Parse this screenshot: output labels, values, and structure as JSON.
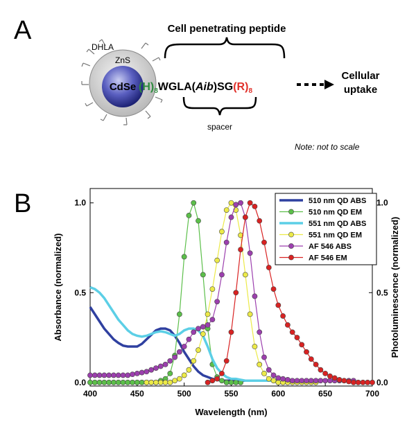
{
  "panel_a": {
    "label": "A",
    "brace_label": "Cell penetrating peptide",
    "dhla": "DHLA",
    "shell": "ZnS",
    "core": "CdSe",
    "peptide": [
      "(H)",
      "8",
      "WGLA(",
      "Aib",
      ")SG",
      "(R)",
      "8"
    ],
    "spacer": "spacer",
    "uptake": [
      "Cellular",
      "uptake"
    ],
    "note": "Note: not to scale"
  },
  "panel_b": {
    "label": "B"
  },
  "chart_data": {
    "type": "line",
    "x_label": "Wavelength (nm)",
    "y_label": "Absorbance (normalized)",
    "y2_label": "Photoluminescence (normalized)",
    "xlim": [
      400,
      700
    ],
    "xticks": [
      400,
      450,
      500,
      550,
      600,
      650,
      700
    ],
    "ylim": [
      -0.02,
      1.08
    ],
    "yticks": [
      {
        "value": 0,
        "label": "0.0"
      },
      {
        "value": 0.5,
        "label": "0.5"
      },
      {
        "value": 1,
        "label": "1.0"
      }
    ],
    "y2lim": [
      -0.02,
      1.08
    ],
    "y2ticks": [
      {
        "value": 0,
        "label": "0.0"
      },
      {
        "value": 0.5,
        "label": "0.5"
      },
      {
        "value": 1,
        "label": "1.0"
      }
    ],
    "legend": "upper right",
    "x": [
      400,
      405,
      410,
      415,
      420,
      425,
      430,
      435,
      440,
      445,
      450,
      455,
      460,
      465,
      470,
      475,
      480,
      485,
      490,
      495,
      500,
      505,
      510,
      515,
      520,
      525,
      530,
      535,
      540,
      545,
      550,
      555,
      560,
      565,
      570,
      575,
      580,
      585,
      590,
      595,
      600,
      605,
      610,
      615,
      620,
      625,
      630,
      635,
      640,
      645,
      650,
      655,
      660,
      665,
      670,
      675,
      680,
      685,
      690,
      695,
      700
    ],
    "series": [
      {
        "name": "510 nm QD ABS",
        "color": "#2f40a0",
        "marker": false,
        "axis": "y",
        "values": [
          0.42,
          0.38,
          0.34,
          0.3,
          0.27,
          0.24,
          0.22,
          0.205,
          0.2,
          0.2,
          0.2,
          0.215,
          0.24,
          0.265,
          0.29,
          0.3,
          0.3,
          0.29,
          0.26,
          0.22,
          0.17,
          0.13,
          0.09,
          0.06,
          0.04,
          0.03,
          0.02,
          0.015,
          0.01,
          0.01,
          0.01,
          0.01,
          0.01,
          0.01,
          0.01,
          0.01,
          0.01,
          0.01,
          0.01,
          0.01,
          0.01,
          null,
          null,
          null,
          null,
          null,
          null,
          null,
          null,
          null,
          null,
          null,
          null,
          null,
          null,
          null,
          null,
          null,
          null,
          null,
          null
        ]
      },
      {
        "name": "510 nm QD EM",
        "color": "#5cbf4a",
        "marker": true,
        "axis": "y2",
        "values": [
          0,
          0,
          0,
          0,
          0,
          0,
          0,
          0,
          0,
          0,
          0,
          0,
          0,
          0,
          0,
          0.01,
          0.02,
          0.05,
          0.15,
          0.38,
          0.7,
          0.93,
          1.0,
          0.9,
          0.6,
          0.3,
          0.1,
          0.03,
          0.01,
          0,
          0,
          0,
          0,
          null,
          null,
          null,
          null,
          null,
          null,
          null,
          null,
          null,
          null,
          null,
          null,
          null,
          null,
          null,
          null,
          null,
          null,
          null,
          null,
          null,
          null,
          null,
          null,
          null,
          null,
          null,
          null
        ]
      },
      {
        "name": "551 nm QD ABS",
        "color": "#5ccfe6",
        "marker": false,
        "axis": "y",
        "values": [
          0.53,
          0.52,
          0.5,
          0.47,
          0.43,
          0.39,
          0.35,
          0.32,
          0.29,
          0.27,
          0.26,
          0.255,
          0.26,
          0.27,
          0.28,
          0.285,
          0.28,
          0.27,
          0.26,
          0.27,
          0.29,
          0.3,
          0.3,
          0.29,
          0.26,
          0.2,
          0.13,
          0.08,
          0.05,
          0.03,
          0.02,
          0.02,
          0.015,
          0.01,
          0.01,
          0.01,
          0.01,
          0.01,
          0.01,
          0.01,
          0.01,
          null,
          null,
          null,
          null,
          null,
          null,
          null,
          null,
          null,
          null,
          null,
          null,
          null,
          null,
          null,
          null,
          null,
          null,
          null,
          null
        ]
      },
      {
        "name": "551 nm QD EM",
        "color": "#ecea48",
        "marker": true,
        "axis": "y2",
        "values": [
          null,
          null,
          null,
          null,
          null,
          null,
          null,
          null,
          null,
          null,
          null,
          null,
          0,
          0,
          0,
          0,
          0,
          0,
          0.01,
          0.02,
          0.04,
          0.07,
          0.12,
          0.18,
          0.27,
          0.38,
          0.52,
          0.68,
          0.84,
          0.96,
          1.0,
          0.96,
          0.82,
          0.6,
          0.38,
          0.2,
          0.1,
          0.05,
          0.02,
          0.01,
          0,
          0,
          0,
          0,
          0,
          0,
          0,
          0,
          0,
          null,
          null,
          null,
          null,
          null,
          null,
          null,
          null,
          null,
          null,
          null,
          null
        ]
      },
      {
        "name": "AF 546 ABS",
        "color": "#9c3fae",
        "marker": true,
        "axis": "y",
        "values": [
          0.04,
          0.04,
          0.04,
          0.04,
          0.04,
          0.04,
          0.04,
          0.04,
          0.04,
          0.045,
          0.05,
          0.055,
          0.06,
          0.07,
          0.08,
          0.09,
          0.1,
          0.12,
          0.14,
          0.17,
          0.2,
          0.24,
          0.28,
          0.3,
          0.31,
          0.32,
          0.35,
          0.45,
          0.6,
          0.78,
          0.92,
          0.99,
          1.0,
          0.92,
          0.72,
          0.48,
          0.28,
          0.14,
          0.07,
          0.04,
          0.025,
          0.02,
          0.015,
          0.01,
          0.01,
          0.01,
          0.01,
          0.01,
          0.01,
          0.01,
          0.01,
          0.01,
          0.01,
          0.01,
          0.01,
          0.01,
          0.01,
          null,
          null,
          null,
          null
        ]
      },
      {
        "name": "AF 546 EM",
        "color": "#d92222",
        "marker": true,
        "axis": "y2",
        "values": [
          null,
          null,
          null,
          null,
          null,
          null,
          null,
          null,
          null,
          null,
          null,
          null,
          null,
          null,
          null,
          null,
          null,
          null,
          null,
          null,
          null,
          null,
          null,
          null,
          null,
          0,
          0.01,
          0.02,
          0.05,
          0.12,
          0.28,
          0.5,
          0.74,
          0.92,
          1.0,
          0.98,
          0.9,
          0.78,
          0.64,
          0.52,
          0.43,
          0.37,
          0.32,
          0.28,
          0.25,
          0.21,
          0.17,
          0.13,
          0.1,
          0.07,
          0.05,
          0.035,
          0.025,
          0.015,
          0.01,
          0.005,
          0,
          0,
          0,
          0,
          0
        ]
      }
    ]
  }
}
